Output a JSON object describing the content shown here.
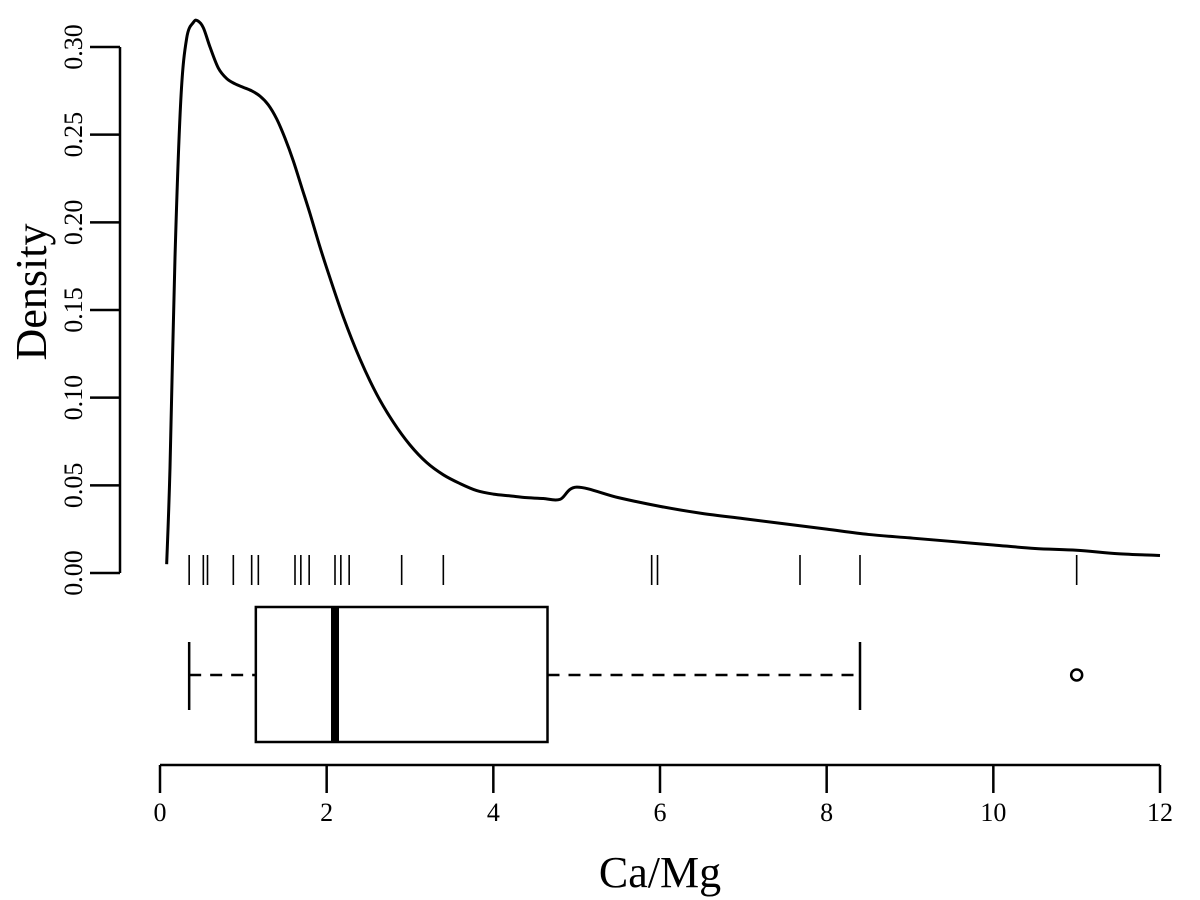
{
  "chart_data": [
    {
      "type": "line",
      "title": "",
      "xlabel": "",
      "ylabel": "Density",
      "xlim": [
        0,
        12
      ],
      "ylim": [
        0,
        0.3
      ],
      "yticks": [
        0.0,
        0.05,
        0.1,
        0.15,
        0.2,
        0.25,
        0.3
      ],
      "ytick_labels": [
        "0.00",
        "0.05",
        "0.10",
        "0.15",
        "0.20",
        "0.25",
        "0.30"
      ],
      "grid": false,
      "series": [
        {
          "x": [
            0.08,
            0.12,
            0.18,
            0.25,
            0.32,
            0.4,
            0.45,
            0.52,
            0.6,
            0.7,
            0.8,
            0.9,
            1.0,
            1.1,
            1.2,
            1.3,
            1.4,
            1.5,
            1.6,
            1.7,
            1.8,
            1.9,
            2.0,
            2.2,
            2.4,
            2.6,
            2.8,
            3.0,
            3.2,
            3.4,
            3.6,
            3.8,
            4.0,
            4.2,
            4.4,
            4.6,
            4.8,
            5.0,
            5.5,
            6.0,
            6.5,
            7.0,
            7.5,
            8.0,
            8.5,
            9.0,
            9.5,
            10.0,
            10.5,
            11.0,
            11.5,
            12.0
          ],
          "y": [
            0.005,
            0.06,
            0.18,
            0.27,
            0.305,
            0.314,
            0.315,
            0.311,
            0.3,
            0.288,
            0.282,
            0.279,
            0.277,
            0.275,
            0.272,
            0.267,
            0.259,
            0.248,
            0.235,
            0.22,
            0.205,
            0.189,
            0.174,
            0.146,
            0.122,
            0.102,
            0.086,
            0.073,
            0.063,
            0.056,
            0.051,
            0.047,
            0.045,
            0.044,
            0.043,
            0.0425,
            0.042,
            0.049,
            0.043,
            0.038,
            0.034,
            0.031,
            0.028,
            0.025,
            0.022,
            0.02,
            0.018,
            0.016,
            0.014,
            0.013,
            0.011,
            0.01
          ]
        }
      ],
      "rug": [
        0.35,
        0.52,
        0.57,
        0.88,
        1.1,
        1.18,
        1.62,
        1.69,
        1.79,
        2.1,
        2.17,
        2.27,
        2.9,
        3.4,
        5.9,
        5.97,
        7.68,
        8.4,
        11.0
      ]
    },
    {
      "type": "boxplot",
      "title": "",
      "xlabel": "Ca/Mg",
      "ylabel": "",
      "xlim": [
        0,
        12
      ],
      "xticks": [
        0,
        2,
        4,
        6,
        8,
        10,
        12
      ],
      "xtick_labels": [
        "0",
        "2",
        "4",
        "6",
        "8",
        "10",
        "12"
      ],
      "grid": false,
      "box": {
        "whisker_low": 0.35,
        "q1": 1.15,
        "median": 2.1,
        "q3": 4.65,
        "whisker_high": 8.4,
        "outliers": [
          11.0
        ]
      }
    }
  ]
}
